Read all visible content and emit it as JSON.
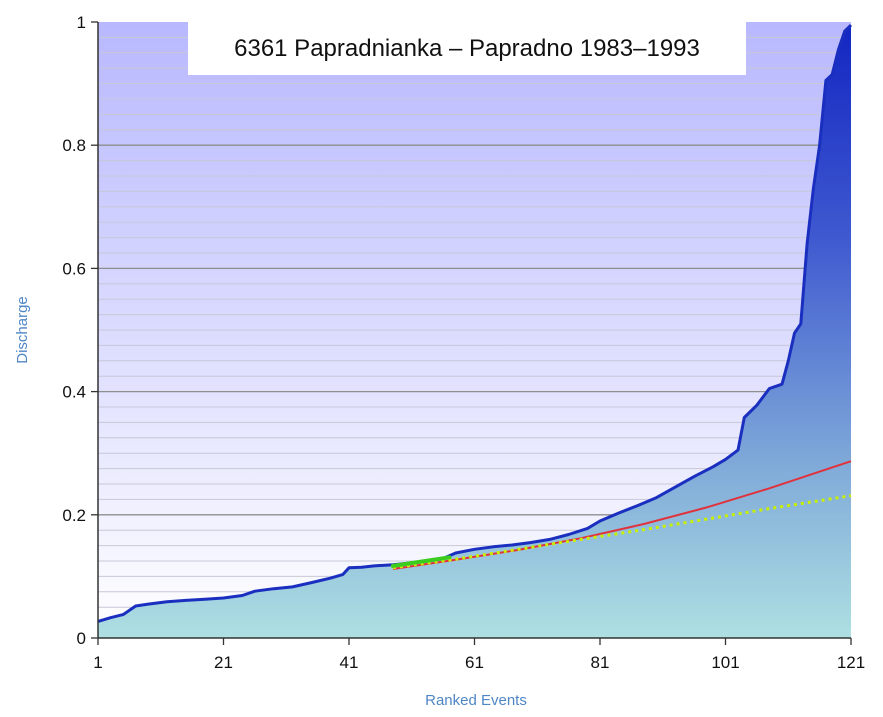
{
  "chart_data": {
    "type": "area",
    "title": "6361 Papradnianka – Papradno 1983–1993",
    "xlabel": "Ranked Events",
    "ylabel": "Discharge",
    "xlim": [
      1,
      121
    ],
    "ylim": [
      0,
      1
    ],
    "x_ticks": [
      "1",
      "21",
      "41",
      "61",
      "81",
      "101",
      "121"
    ],
    "y_ticks": [
      "0",
      "0.2",
      "0.4",
      "0.6",
      "0.8",
      "1"
    ],
    "grid": true,
    "series": [
      {
        "kind": "area",
        "color": "#1a2fbf",
        "points": [
          [
            1,
            0.027
          ],
          [
            3,
            0.033
          ],
          [
            5,
            0.038
          ],
          [
            7,
            0.052
          ],
          [
            9,
            0.055
          ],
          [
            12,
            0.059
          ],
          [
            15,
            0.061
          ],
          [
            18,
            0.063
          ],
          [
            21,
            0.065
          ],
          [
            24,
            0.069
          ],
          [
            26,
            0.076
          ],
          [
            29,
            0.08
          ],
          [
            32,
            0.083
          ],
          [
            35,
            0.09
          ],
          [
            38,
            0.097
          ],
          [
            40,
            0.103
          ],
          [
            41,
            0.114
          ],
          [
            43,
            0.115
          ],
          [
            45,
            0.117
          ],
          [
            48,
            0.119
          ],
          [
            50,
            0.121
          ],
          [
            53,
            0.124
          ],
          [
            56,
            0.129
          ],
          [
            58,
            0.138
          ],
          [
            61,
            0.144
          ],
          [
            64,
            0.148
          ],
          [
            67,
            0.151
          ],
          [
            70,
            0.155
          ],
          [
            73,
            0.16
          ],
          [
            76,
            0.168
          ],
          [
            79,
            0.178
          ],
          [
            81,
            0.19
          ],
          [
            84,
            0.203
          ],
          [
            87,
            0.215
          ],
          [
            90,
            0.228
          ],
          [
            93,
            0.245
          ],
          [
            96,
            0.262
          ],
          [
            99,
            0.278
          ],
          [
            101,
            0.29
          ],
          [
            103,
            0.305
          ],
          [
            104,
            0.358
          ],
          [
            106,
            0.378
          ],
          [
            108,
            0.405
          ],
          [
            110,
            0.412
          ],
          [
            111,
            0.45
          ],
          [
            112,
            0.495
          ],
          [
            113,
            0.51
          ],
          [
            114,
            0.64
          ],
          [
            115,
            0.73
          ],
          [
            116,
            0.8
          ],
          [
            117,
            0.905
          ],
          [
            118,
            0.915
          ],
          [
            119,
            0.955
          ],
          [
            120,
            0.985
          ],
          [
            121,
            0.995
          ]
        ]
      },
      {
        "kind": "line",
        "color": "#e0323c",
        "points": [
          [
            48,
            0.112
          ],
          [
            58,
            0.127
          ],
          [
            68,
            0.143
          ],
          [
            78,
            0.162
          ],
          [
            88,
            0.185
          ],
          [
            98,
            0.212
          ],
          [
            108,
            0.243
          ],
          [
            121,
            0.287
          ]
        ]
      },
      {
        "kind": "dotted",
        "color": "#c8f000",
        "points": [
          [
            48,
            0.114
          ],
          [
            58,
            0.128
          ],
          [
            68,
            0.144
          ],
          [
            78,
            0.16
          ],
          [
            88,
            0.176
          ],
          [
            98,
            0.193
          ],
          [
            108,
            0.21
          ],
          [
            121,
            0.231
          ]
        ]
      },
      {
        "kind": "segment",
        "color": "#3acc1e",
        "points": [
          [
            48,
            0.117
          ],
          [
            57,
            0.131
          ]
        ]
      }
    ]
  }
}
